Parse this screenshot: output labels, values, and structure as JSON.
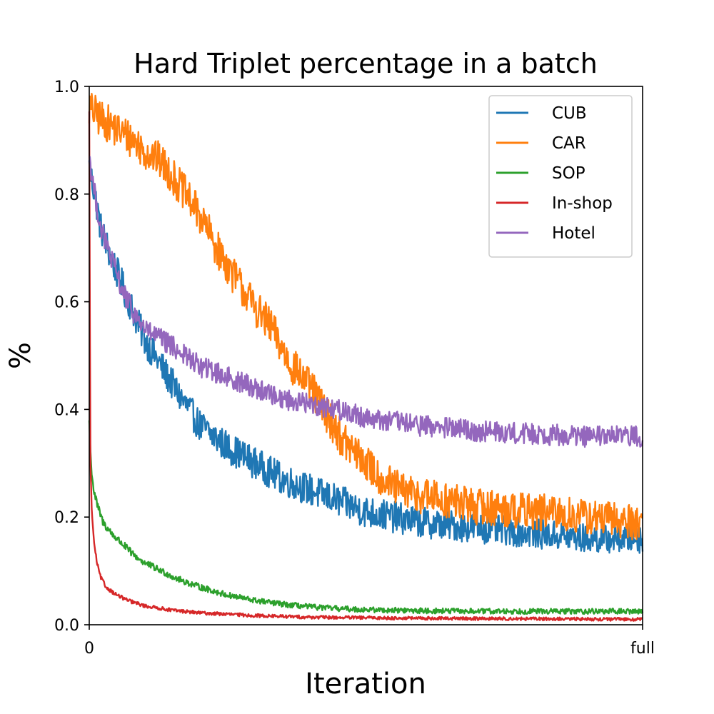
{
  "chart_data": {
    "type": "line",
    "title": "Hard Triplet percentage in a batch",
    "xlabel": "Iteration",
    "ylabel": "%",
    "x_ticks": [
      {
        "value": 0,
        "label": "0"
      },
      {
        "value": 1,
        "label": "full"
      }
    ],
    "xlim": [
      0,
      1
    ],
    "ylim": [
      0,
      1
    ],
    "y_ticks": [
      {
        "value": 0.0,
        "label": "0.0"
      },
      {
        "value": 0.2,
        "label": "0.2"
      },
      {
        "value": 0.4,
        "label": "0.4"
      },
      {
        "value": 0.6,
        "label": "0.6"
      },
      {
        "value": 0.8,
        "label": "0.8"
      },
      {
        "value": 1.0,
        "label": "1.0"
      }
    ],
    "grid": false,
    "legend_position": "top-right",
    "series": [
      {
        "name": "CUB",
        "color": "#1f77b4",
        "noise": 0.03,
        "x": [
          0,
          0.01,
          0.02,
          0.04,
          0.06,
          0.08,
          0.1,
          0.13,
          0.16,
          0.2,
          0.25,
          0.3,
          0.35,
          0.4,
          0.45,
          0.5,
          0.55,
          0.6,
          0.65,
          0.7,
          0.75,
          0.8,
          0.85,
          0.9,
          0.95,
          1.0
        ],
        "y": [
          0.85,
          0.8,
          0.74,
          0.68,
          0.63,
          0.58,
          0.53,
          0.48,
          0.43,
          0.37,
          0.33,
          0.3,
          0.27,
          0.25,
          0.23,
          0.21,
          0.2,
          0.19,
          0.185,
          0.18,
          0.175,
          0.17,
          0.165,
          0.16,
          0.16,
          0.16
        ]
      },
      {
        "name": "CAR",
        "color": "#ff7f0e",
        "noise": 0.035,
        "x": [
          0,
          0.02,
          0.05,
          0.08,
          0.1,
          0.13,
          0.16,
          0.2,
          0.23,
          0.26,
          0.3,
          0.33,
          0.36,
          0.4,
          0.43,
          0.46,
          0.5,
          0.53,
          0.56,
          0.6,
          0.65,
          0.7,
          0.75,
          0.8,
          0.85,
          0.9,
          0.95,
          1.0
        ],
        "y": [
          0.96,
          0.94,
          0.92,
          0.9,
          0.88,
          0.86,
          0.82,
          0.76,
          0.7,
          0.65,
          0.59,
          0.55,
          0.49,
          0.44,
          0.39,
          0.34,
          0.3,
          0.27,
          0.25,
          0.24,
          0.23,
          0.22,
          0.215,
          0.21,
          0.205,
          0.2,
          0.195,
          0.19
        ]
      },
      {
        "name": "SOP",
        "color": "#2ca02c",
        "noise": 0.008,
        "x": [
          0,
          0.003,
          0.008,
          0.015,
          0.025,
          0.04,
          0.06,
          0.08,
          0.1,
          0.13,
          0.16,
          0.2,
          0.25,
          0.3,
          0.35,
          0.4,
          0.45,
          0.5,
          0.6,
          0.7,
          0.8,
          0.9,
          1.0
        ],
        "y": [
          0.38,
          0.3,
          0.25,
          0.22,
          0.19,
          0.17,
          0.15,
          0.13,
          0.115,
          0.1,
          0.085,
          0.07,
          0.055,
          0.045,
          0.038,
          0.033,
          0.03,
          0.028,
          0.026,
          0.025,
          0.025,
          0.025,
          0.025
        ]
      },
      {
        "name": "In-shop",
        "color": "#d62728",
        "noise": 0.005,
        "x": [
          0,
          0.002,
          0.005,
          0.01,
          0.015,
          0.02,
          0.03,
          0.05,
          0.07,
          0.1,
          0.15,
          0.2,
          0.3,
          0.4,
          0.5,
          0.6,
          0.8,
          1.0
        ],
        "y": [
          0.95,
          0.3,
          0.2,
          0.14,
          0.11,
          0.09,
          0.07,
          0.055,
          0.045,
          0.035,
          0.027,
          0.022,
          0.017,
          0.014,
          0.013,
          0.012,
          0.011,
          0.01
        ]
      },
      {
        "name": "Hotel",
        "color": "#9467bd",
        "noise": 0.02,
        "x": [
          0,
          0.01,
          0.02,
          0.04,
          0.06,
          0.08,
          0.1,
          0.13,
          0.16,
          0.2,
          0.25,
          0.3,
          0.35,
          0.4,
          0.45,
          0.5,
          0.6,
          0.7,
          0.8,
          0.9,
          1.0
        ],
        "y": [
          0.87,
          0.8,
          0.74,
          0.68,
          0.62,
          0.58,
          0.55,
          0.53,
          0.51,
          0.48,
          0.46,
          0.44,
          0.42,
          0.41,
          0.4,
          0.385,
          0.37,
          0.36,
          0.355,
          0.35,
          0.35
        ]
      }
    ]
  }
}
